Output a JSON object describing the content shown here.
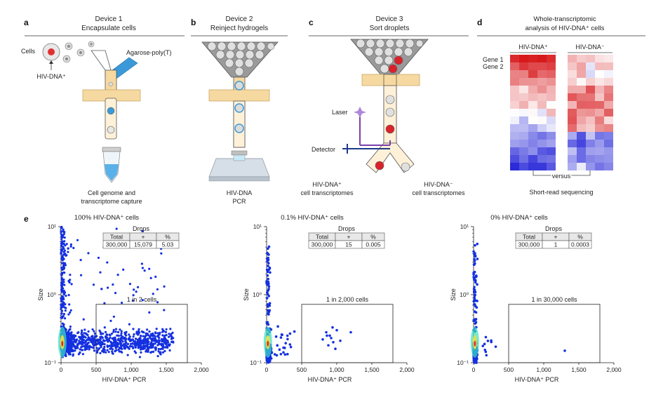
{
  "panels": {
    "a": {
      "letter": "a",
      "device": "Device 1",
      "title": "Encapsulate cells",
      "cells_label": "Cells",
      "hiv_label": "HIV-DNA⁺",
      "agarose_label": "Agarose-poly(T)",
      "caption1": "Cell genome and",
      "caption2": "transcriptome capture"
    },
    "b": {
      "letter": "b",
      "device": "Device 2",
      "title": "Reinject hydrogels",
      "caption1": "HIV-DNA",
      "caption2": "PCR"
    },
    "c": {
      "letter": "c",
      "device": "Device 3",
      "title": "Sort droplets",
      "laser_label": "Laser",
      "detector_label": "Detector",
      "pos_caption1": "HIV-DNA⁺",
      "pos_caption2": "cell transcriptomes",
      "neg_caption1": "HIV-DNA⁻",
      "neg_caption2": "cell transcriptomes"
    },
    "d": {
      "letter": "d",
      "title1": "Whole-transcriptomic",
      "title2": "analysis of HIV-DNA⁺ cells",
      "pos_header": "HIV-DNA⁺",
      "neg_header": "HIV-DNA⁻",
      "gene1": "Gene 1",
      "gene2": "Gene 2",
      "versus": "versus",
      "footer": "Short-read sequencing"
    },
    "e": {
      "letter": "e"
    }
  },
  "colors": {
    "accent_blue": "#3a9ad9",
    "tan": "#f6d9a0",
    "red": "#d9222a",
    "heat_high": "#d7191c",
    "heat_low": "#2b2bd9",
    "scatter": "#1430e0"
  },
  "chart_data": [
    {
      "type": "scatter",
      "title": "100% HIV-DNA⁺ cells",
      "xlabel": "HIV-DNA⁺ PCR",
      "ylabel": "Size",
      "x_ticks": [
        "0",
        "500",
        "1,000",
        "1,500",
        "2,000"
      ],
      "y_ticks": [
        "10⁻¹",
        "10⁰",
        "10¹"
      ],
      "xlim": [
        0,
        2000
      ],
      "ylim": [
        0.1,
        10
      ],
      "y_scale": "log",
      "gate_label": "1 in 2 cells",
      "table": {
        "title": "Drops",
        "headers": [
          "Total",
          "+",
          "%"
        ],
        "values": [
          "300,000",
          "15,079",
          "5.03"
        ]
      }
    },
    {
      "type": "scatter",
      "title": "0.1% HIV-DNA⁺ cells",
      "xlabel": "HIV-DNA⁺ PCR",
      "ylabel": "Size",
      "x_ticks": [
        "0",
        "500",
        "1,000",
        "1,500",
        "2,000"
      ],
      "y_ticks": [
        "10⁻¹",
        "10⁰",
        "10¹"
      ],
      "xlim": [
        0,
        2000
      ],
      "ylim": [
        0.1,
        10
      ],
      "y_scale": "log",
      "gate_label": "1 in 2,000 cells",
      "table": {
        "title": "Drops",
        "headers": [
          "Total",
          "+",
          "%"
        ],
        "values": [
          "300,000",
          "15",
          "0.005"
        ]
      }
    },
    {
      "type": "scatter",
      "title": "0% HIV-DNA⁺ cells",
      "xlabel": "HIV-DNA⁺ PCR",
      "ylabel": "Size",
      "x_ticks": [
        "0",
        "500",
        "1,000",
        "1,500",
        "2,000"
      ],
      "y_ticks": [
        "10⁻¹",
        "10⁰",
        "10¹"
      ],
      "xlim": [
        0,
        2000
      ],
      "ylim": [
        0.1,
        10
      ],
      "y_scale": "log",
      "gate_label": "1 in 30,000 cells",
      "table": {
        "title": "Drops",
        "headers": [
          "Total",
          "+",
          "%"
        ],
        "values": [
          "300,000",
          "1",
          "0.0003"
        ]
      }
    }
  ]
}
